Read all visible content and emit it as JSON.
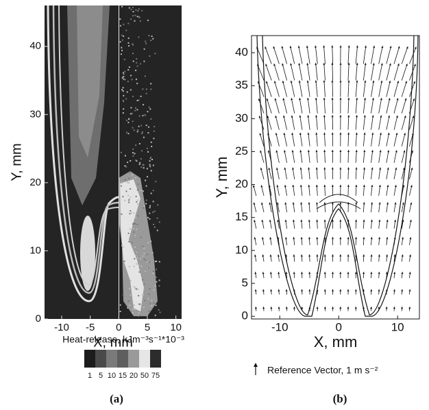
{
  "chart_data": [
    {
      "type": "heatmap",
      "xlabel": "X, mm",
      "ylabel": "Y, mm",
      "xlim": [
        -13,
        11
      ],
      "ylim": [
        0,
        46
      ],
      "xticks": [
        -10,
        -5,
        0,
        5,
        10
      ],
      "yticks": [
        0,
        10,
        20,
        30,
        40
      ],
      "colorbar": {
        "title": "Heat-release, kJm⁻³s⁻¹*10⁻³",
        "levels": [
          1,
          5,
          10,
          15,
          20,
          50,
          75
        ],
        "colors": [
          "#1c1c1c",
          "#4a4a4a",
          "#7a7a7a",
          "#5e5e5e",
          "#9a9a9a",
          "#e6e6e6",
          "#2c2c2c"
        ]
      },
      "panel_label": "(a)"
    },
    {
      "type": "vector",
      "xlabel": "X, mm",
      "ylabel": "Y, mm",
      "xlim": [
        -14.8,
        13.7
      ],
      "ylim": [
        -0.4,
        42.6
      ],
      "xticks": [
        -10,
        0,
        10
      ],
      "yticks": [
        0,
        5,
        10,
        15,
        20,
        25,
        30,
        35,
        40
      ],
      "reference_label": "Reference Vector, 1 m s⁻²",
      "panel_label": "(b)"
    }
  ]
}
